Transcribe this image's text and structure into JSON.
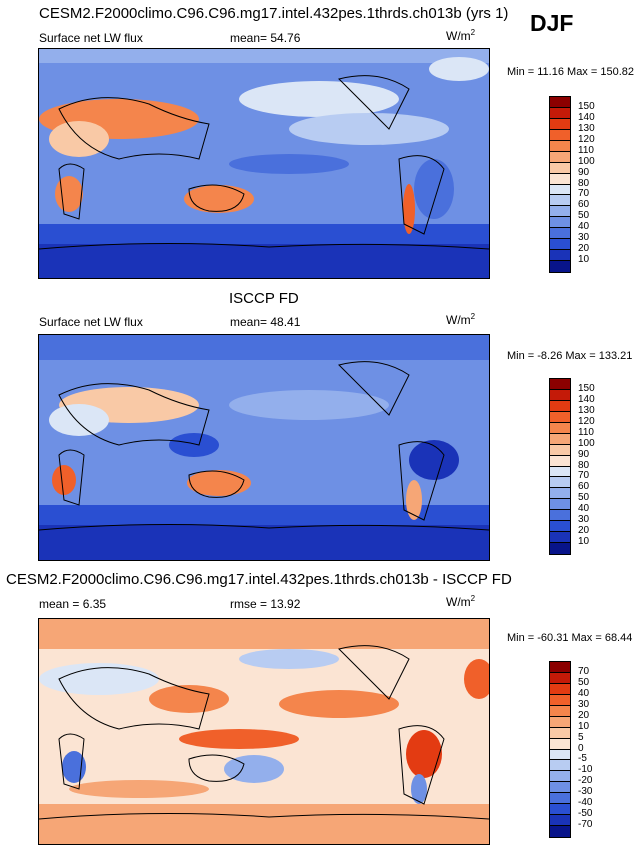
{
  "season": "DJF",
  "panels": [
    {
      "title": "CESM2.F2000climo.C96.C96.mg17.intel.432pes.1thrds.ch013b (yrs 1)",
      "left_label": "Surface net LW flux",
      "center_label": "mean=  54.76",
      "unit_base": "W/m",
      "unit_exp": "2",
      "minmax": "Min =  11.16 Max = 150.82",
      "colorbar": {
        "labels": [
          "150",
          "140",
          "130",
          "120",
          "110",
          "100",
          "90",
          "80",
          "70",
          "60",
          "50",
          "40",
          "30",
          "20",
          "10"
        ],
        "colors": [
          "#8b0000",
          "#c41a08",
          "#e33b12",
          "#f0602a",
          "#f4854c",
          "#f6a676",
          "#f9c9a6",
          "#fbe4d3",
          "#dbe6f6",
          "#b8ccf2",
          "#93afec",
          "#6e90e4",
          "#4a70dc",
          "#2a4fd2",
          "#1a33b8",
          "#08148a"
        ]
      }
    },
    {
      "title": "ISCCP FD",
      "left_label": "Surface net LW flux",
      "center_label": "mean=  48.41",
      "unit_base": "W/m",
      "unit_exp": "2",
      "minmax": "Min =  -8.26 Max = 133.21",
      "colorbar": {
        "labels": [
          "150",
          "140",
          "130",
          "120",
          "110",
          "100",
          "90",
          "80",
          "70",
          "60",
          "50",
          "40",
          "30",
          "20",
          "10"
        ],
        "colors": [
          "#8b0000",
          "#c41a08",
          "#e33b12",
          "#f0602a",
          "#f4854c",
          "#f6a676",
          "#f9c9a6",
          "#fbe4d3",
          "#dbe6f6",
          "#b8ccf2",
          "#93afec",
          "#6e90e4",
          "#4a70dc",
          "#2a4fd2",
          "#1a33b8",
          "#08148a"
        ]
      }
    },
    {
      "title": "CESM2.F2000climo.C96.C96.mg17.intel.432pes.1thrds.ch013b - ISCCP FD",
      "left_label": "mean =   6.35",
      "center_label": "rmse =  13.92",
      "unit_base": "W/m",
      "unit_exp": "2",
      "minmax": "Min = -60.31 Max =  68.44",
      "colorbar": {
        "labels": [
          "70",
          "50",
          "40",
          "30",
          "20",
          "10",
          "5",
          "0",
          "-5",
          "-10",
          "-20",
          "-30",
          "-40",
          "-50",
          "-70"
        ],
        "colors": [
          "#8b0000",
          "#c41a08",
          "#e33b12",
          "#f0602a",
          "#f4854c",
          "#f6a676",
          "#f9c9a6",
          "#fbe4d3",
          "#dbe6f6",
          "#b8ccf2",
          "#93afec",
          "#6e90e4",
          "#4a70dc",
          "#2a4fd2",
          "#1a33b8",
          "#08148a"
        ]
      }
    }
  ],
  "chart_data": [
    {
      "type": "heatmap",
      "title": "CESM2.F2000climo.C96.C96.mg17.intel.432pes.1thrds.ch013b (yrs 1)",
      "variable": "Surface net LW flux",
      "units": "W/m2",
      "mean": 54.76,
      "min": 11.16,
      "max": 150.82,
      "contour_levels": [
        10,
        20,
        30,
        40,
        50,
        60,
        70,
        80,
        90,
        100,
        110,
        120,
        130,
        140,
        150
      ]
    },
    {
      "type": "heatmap",
      "title": "ISCCP FD",
      "variable": "Surface net LW flux",
      "units": "W/m2",
      "mean": 48.41,
      "min": -8.26,
      "max": 133.21,
      "contour_levels": [
        10,
        20,
        30,
        40,
        50,
        60,
        70,
        80,
        90,
        100,
        110,
        120,
        130,
        140,
        150
      ]
    },
    {
      "type": "heatmap",
      "title": "CESM2.F2000climo.C96.C96.mg17.intel.432pes.1thrds.ch013b - ISCCP FD",
      "units": "W/m2",
      "mean": 6.35,
      "rmse": 13.92,
      "min": -60.31,
      "max": 68.44,
      "contour_levels": [
        -70,
        -50,
        -40,
        -30,
        -20,
        -10,
        -5,
        0,
        5,
        10,
        20,
        30,
        40,
        50,
        70
      ]
    }
  ]
}
